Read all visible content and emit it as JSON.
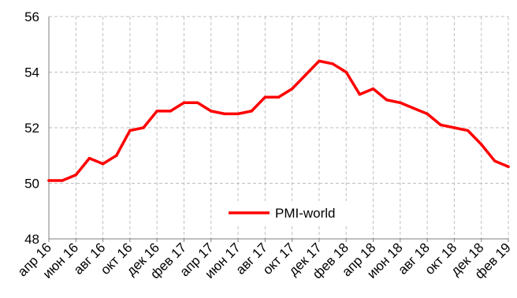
{
  "chart_data": {
    "type": "line",
    "x": [
      "апр 16",
      "май 16",
      "июн 16",
      "июл 16",
      "авг 16",
      "сен 16",
      "окт 16",
      "ноя 16",
      "дек 16",
      "янв 17",
      "фев 17",
      "мар 17",
      "апр 17",
      "май 17",
      "июн 17",
      "июл 17",
      "авг 17",
      "сен 17",
      "окт 17",
      "ноя 17",
      "дек 17",
      "янв 18",
      "фев 18",
      "мар 18",
      "апр 18",
      "май 18",
      "июн 18",
      "июл 18",
      "авг 18",
      "сен 18",
      "окт 18",
      "ноя 18",
      "дек 18",
      "янв 19",
      "фев 19"
    ],
    "tick_labels": [
      "апр 16",
      "июн 16",
      "авг 16",
      "окт 16",
      "дек 16",
      "фев 17",
      "апр 17",
      "июн 17",
      "авг 17",
      "окт 17",
      "дек 17",
      "фев 18",
      "апр 18",
      "июн 18",
      "авг 18",
      "окт 18",
      "дек 18",
      "фев 19"
    ],
    "series": [
      {
        "name": "PMI-world",
        "color": "#ff0000",
        "values": [
          50.1,
          50.1,
          50.3,
          50.9,
          50.7,
          51.0,
          51.9,
          52.0,
          52.6,
          52.6,
          52.9,
          52.9,
          52.6,
          52.5,
          52.5,
          52.6,
          53.1,
          53.1,
          53.4,
          53.9,
          54.4,
          54.3,
          54.0,
          53.2,
          53.4,
          53.0,
          52.9,
          52.7,
          52.5,
          52.1,
          52.0,
          51.9,
          51.4,
          50.8,
          50.6
        ]
      }
    ],
    "yticks": [
      48,
      50,
      52,
      54,
      56
    ],
    "ylim": [
      48,
      56
    ],
    "grid": true,
    "legend": "inside-bottom-center"
  }
}
